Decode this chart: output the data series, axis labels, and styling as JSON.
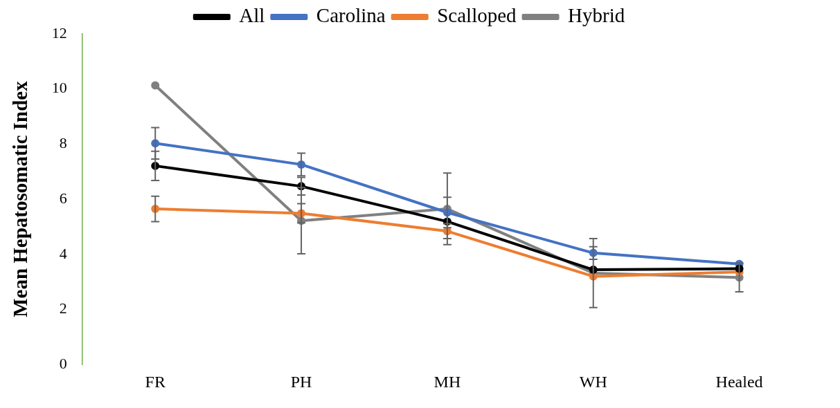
{
  "chart_data": {
    "type": "line",
    "ylabel": "Mean Hepatosomatic Index",
    "categories": [
      "FR",
      "PH",
      "MH",
      "WH",
      "Healed"
    ],
    "ylim": [
      0,
      12
    ],
    "yticks": [
      0,
      2,
      4,
      6,
      8,
      10,
      12
    ],
    "grid": false,
    "legend": "top",
    "marker": "circle",
    "line_style": "solid",
    "series": [
      {
        "name": "All",
        "color": "#000000",
        "values": [
          7.21,
          6.47,
          5.19,
          3.44,
          3.48
        ],
        "errors": [
          0.53,
          0.32,
          null,
          null,
          null
        ]
      },
      {
        "name": "Carolina",
        "color": "#4472c4",
        "values": [
          8.03,
          7.26,
          5.52,
          4.05,
          3.65
        ],
        "errors": [
          0.57,
          0.41,
          0.55,
          0.23,
          null
        ]
      },
      {
        "name": "Scalloped",
        "color": "#ed7d31",
        "values": [
          5.65,
          5.49,
          4.84,
          3.2,
          3.36
        ],
        "errors": [
          0.46,
          0.35,
          0.27,
          null,
          null
        ]
      },
      {
        "name": "Hybrid",
        "color": "#808080",
        "values": [
          10.13,
          5.22,
          5.65,
          3.32,
          3.16
        ],
        "errors": [
          null,
          1.2,
          1.3,
          1.25,
          0.52
        ]
      }
    ]
  }
}
